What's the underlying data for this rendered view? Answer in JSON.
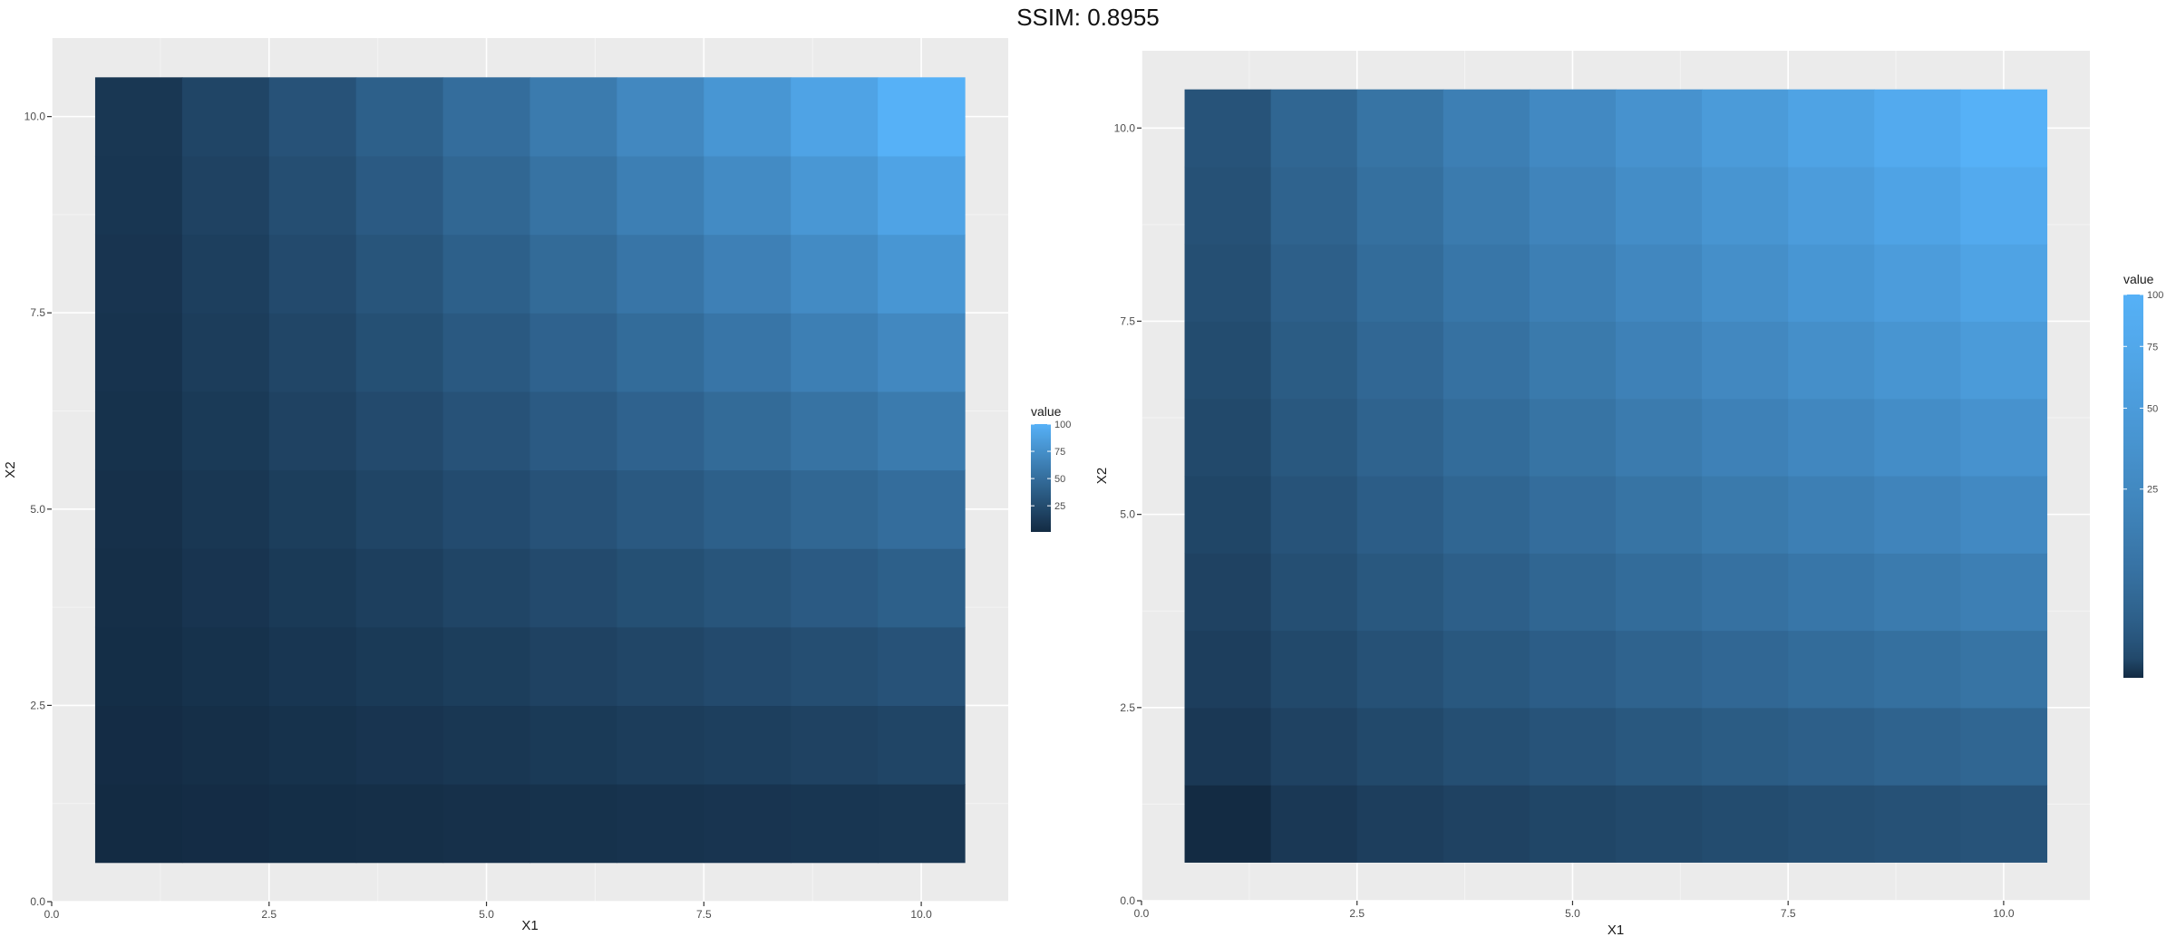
{
  "page_title": "SSIM: 0.8955",
  "colors": {
    "panel_background": "#ebebeb",
    "grid_major": "#ffffff",
    "gradient_low": "#132B43",
    "gradient_high": "#56B1F7"
  },
  "chart_data": [
    {
      "type": "heatmap",
      "title": "",
      "xlabel": "X1",
      "ylabel": "X2",
      "xlim": [
        0,
        11
      ],
      "ylim": [
        0,
        11
      ],
      "x_ticks": [
        "0.0",
        "2.5",
        "5.0",
        "7.5",
        "10.0"
      ],
      "y_ticks": [
        "0.0",
        "2.5",
        "5.0",
        "7.5",
        "10.0"
      ],
      "x": [
        1,
        2,
        3,
        4,
        5,
        6,
        7,
        8,
        9,
        10
      ],
      "y": [
        1,
        2,
        3,
        4,
        5,
        6,
        7,
        8,
        9,
        10
      ],
      "value_formula": "value = x * y",
      "values": [
        [
          1,
          2,
          3,
          4,
          5,
          6,
          7,
          8,
          9,
          10
        ],
        [
          2,
          4,
          6,
          8,
          10,
          12,
          14,
          16,
          18,
          20
        ],
        [
          3,
          6,
          9,
          12,
          15,
          18,
          21,
          24,
          27,
          30
        ],
        [
          4,
          8,
          12,
          16,
          20,
          24,
          28,
          32,
          36,
          40
        ],
        [
          5,
          10,
          15,
          20,
          25,
          30,
          35,
          40,
          45,
          50
        ],
        [
          6,
          12,
          18,
          24,
          30,
          36,
          42,
          48,
          54,
          60
        ],
        [
          7,
          14,
          21,
          28,
          35,
          42,
          49,
          56,
          63,
          70
        ],
        [
          8,
          16,
          24,
          32,
          40,
          48,
          56,
          64,
          72,
          80
        ],
        [
          9,
          18,
          27,
          36,
          45,
          54,
          63,
          72,
          81,
          90
        ],
        [
          10,
          20,
          30,
          40,
          50,
          60,
          70,
          80,
          90,
          100
        ]
      ],
      "color_scale": "linear",
      "legend": {
        "title": "value",
        "labels": [
          "25",
          "50",
          "75",
          "100"
        ],
        "breaks": [
          25,
          50,
          75,
          100
        ],
        "limits": [
          1,
          100
        ],
        "position": "right"
      },
      "grid": true
    },
    {
      "type": "heatmap",
      "title": "",
      "xlabel": "X1",
      "ylabel": "X2",
      "xlim": [
        0,
        11
      ],
      "ylim": [
        0,
        11
      ],
      "x_ticks": [
        "0.0",
        "2.5",
        "5.0",
        "7.5",
        "10.0"
      ],
      "y_ticks": [
        "0.0",
        "2.5",
        "5.0",
        "7.5",
        "10.0"
      ],
      "x": [
        1,
        2,
        3,
        4,
        5,
        6,
        7,
        8,
        9,
        10
      ],
      "y": [
        1,
        2,
        3,
        4,
        5,
        6,
        7,
        8,
        9,
        10
      ],
      "value_formula": "value = x * y",
      "values": [
        [
          1,
          2,
          3,
          4,
          5,
          6,
          7,
          8,
          9,
          10
        ],
        [
          2,
          4,
          6,
          8,
          10,
          12,
          14,
          16,
          18,
          20
        ],
        [
          3,
          6,
          9,
          12,
          15,
          18,
          21,
          24,
          27,
          30
        ],
        [
          4,
          8,
          12,
          16,
          20,
          24,
          28,
          32,
          36,
          40
        ],
        [
          5,
          10,
          15,
          20,
          25,
          30,
          35,
          40,
          45,
          50
        ],
        [
          6,
          12,
          18,
          24,
          30,
          36,
          42,
          48,
          54,
          60
        ],
        [
          7,
          14,
          21,
          28,
          35,
          42,
          49,
          56,
          63,
          70
        ],
        [
          8,
          16,
          24,
          32,
          40,
          48,
          56,
          64,
          72,
          80
        ],
        [
          9,
          18,
          27,
          36,
          45,
          54,
          63,
          72,
          81,
          90
        ],
        [
          10,
          20,
          30,
          40,
          50,
          60,
          70,
          80,
          90,
          100
        ]
      ],
      "color_scale": "sqrt",
      "legend": {
        "title": "value",
        "labels": [
          "25",
          "50",
          "75",
          "100"
        ],
        "breaks": [
          25,
          50,
          75,
          100
        ],
        "limits": [
          1,
          100
        ],
        "position": "right"
      },
      "grid": true
    }
  ]
}
